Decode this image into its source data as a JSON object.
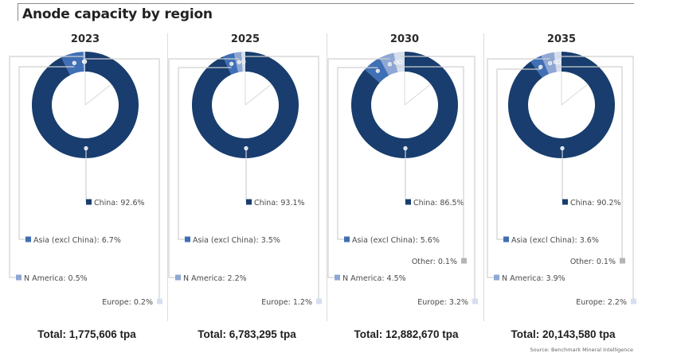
{
  "title": "Anode capacity by region",
  "source": "Source: Benchmark Mineral Intelligence",
  "colors": {
    "China": "#183d6e",
    "Asia (excl China)": "#3f6fb5",
    "N America": "#8ea7d4",
    "Other": "#b5b5b5",
    "Europe": "#d5dff0"
  },
  "chart_data": [
    {
      "type": "pie",
      "variant": "donut",
      "title": "2023",
      "categories": [
        "China",
        "Asia (excl China)",
        "N America",
        "Europe"
      ],
      "values": [
        92.6,
        6.7,
        0.5,
        0.2
      ],
      "unit": "%",
      "labels": [
        "China: 92.6%",
        "Asia (excl China): 6.7%",
        "N America: 0.5%",
        "Europe: 0.2%"
      ],
      "total_label": "Total: 1,775,606 tpa",
      "total_tpa": 1775606
    },
    {
      "type": "pie",
      "variant": "donut",
      "title": "2025",
      "categories": [
        "China",
        "Asia (excl China)",
        "N America",
        "Europe"
      ],
      "values": [
        93.1,
        3.5,
        2.2,
        1.2
      ],
      "unit": "%",
      "labels": [
        "China: 93.1%",
        "Asia (excl China): 3.5%",
        "N America: 2.2%",
        "Europe: 1.2%"
      ],
      "total_label": "Total: 6,783,295 tpa",
      "total_tpa": 6783295
    },
    {
      "type": "pie",
      "variant": "donut",
      "title": "2030",
      "categories": [
        "China",
        "Asia (excl China)",
        "N America",
        "Other",
        "Europe"
      ],
      "values": [
        86.5,
        5.6,
        4.5,
        0.1,
        3.2
      ],
      "unit": "%",
      "labels": [
        "China: 86.5%",
        "Asia (excl China): 5.6%",
        "N America: 4.5%",
        "Other: 0.1%",
        "Europe: 3.2%"
      ],
      "total_label": "Total: 12,882,670 tpa",
      "total_tpa": 12882670
    },
    {
      "type": "pie",
      "variant": "donut",
      "title": "2035",
      "categories": [
        "China",
        "Asia (excl China)",
        "N America",
        "Other",
        "Europe"
      ],
      "values": [
        90.2,
        3.6,
        3.9,
        0.1,
        2.2
      ],
      "unit": "%",
      "labels": [
        "China: 90.2%",
        "Asia (excl China): 3.6%",
        "N America: 3.9%",
        "Other: 0.1%",
        "Europe: 2.2%"
      ],
      "total_label": "Total: 20,143,580 tpa",
      "total_tpa": 20143580
    }
  ]
}
